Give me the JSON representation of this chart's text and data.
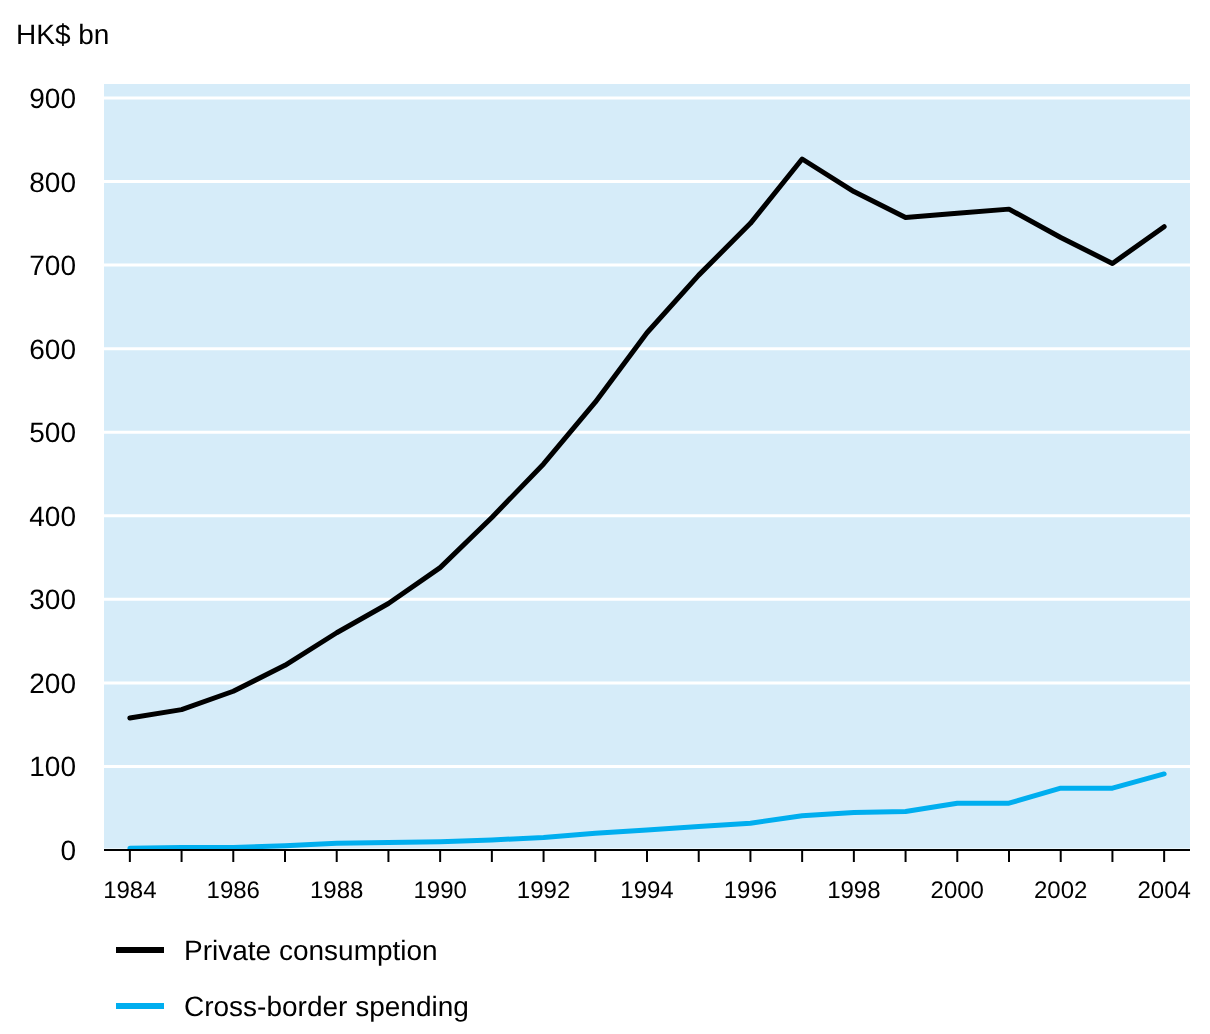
{
  "chart_data": {
    "type": "line",
    "ylabel": "HK$ bn",
    "x": [
      1984,
      1985,
      1986,
      1987,
      1988,
      1989,
      1990,
      1991,
      1992,
      1993,
      1994,
      1995,
      1996,
      1997,
      1998,
      1999,
      2000,
      2001,
      2002,
      2003,
      2004
    ],
    "series": [
      {
        "name": "Private consumption",
        "color": "#000000",
        "values": [
          158,
          168,
          190,
          221,
          260,
          295,
          338,
          398,
          462,
          536,
          619,
          688,
          750,
          827,
          788,
          757,
          762,
          767,
          733,
          702,
          746
        ]
      },
      {
        "name": "Cross-border spending",
        "color": "#00aeef",
        "values": [
          2,
          3,
          3,
          5,
          8,
          9,
          10,
          12,
          15,
          20,
          24,
          28,
          32,
          41,
          45,
          46,
          56,
          56,
          74,
          74,
          91
        ]
      }
    ],
    "xlim": [
      1983.5,
      2004.5
    ],
    "xticks": [
      1984,
      {
        "value": 1985,
        "label": null
      },
      1986,
      {
        "value": 1987,
        "label": null
      },
      1988,
      {
        "value": 1989,
        "label": null
      },
      1990,
      {
        "value": 1991,
        "label": null
      },
      1992,
      {
        "value": 1993,
        "label": null
      },
      1994,
      {
        "value": 1995,
        "label": null
      },
      1996,
      {
        "value": 1997,
        "label": null
      },
      1998,
      {
        "value": 1999,
        "label": null
      },
      2000,
      {
        "value": 2001,
        "label": null
      },
      2002,
      {
        "value": 2003,
        "label": null
      },
      2004
    ],
    "ylim": [
      0,
      900
    ],
    "yticks": [
      0,
      100,
      200,
      300,
      400,
      500,
      600,
      700,
      800,
      900
    ],
    "grid": "y",
    "legend": "bottom",
    "marker": "none",
    "line_style": "solid"
  }
}
